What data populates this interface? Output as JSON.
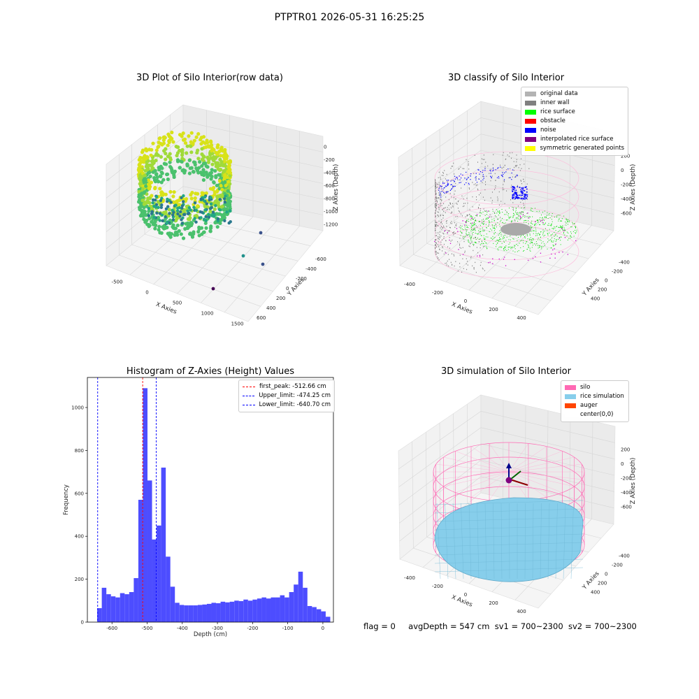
{
  "suptitle": "PTPTR01 2026-05-31 16:25:25",
  "panels": {
    "tl": {
      "title": "3D Plot of Silo Interior(row data)",
      "xlabel": "X Axies",
      "ylabel": "Y Axies",
      "zlabel": "Z Axies (Depth)",
      "xticks": [
        "-500",
        "0",
        "500",
        "1000",
        "1500"
      ],
      "yticks": [
        "600",
        "400",
        "200",
        "0",
        "-200",
        "-400",
        "-600"
      ],
      "zticks": [
        "0",
        "-200",
        "-400",
        "-600",
        "-800",
        "-1000",
        "-1200"
      ]
    },
    "tr": {
      "title": "3D classify of Silo Interior",
      "xlabel": "X Axies",
      "ylabel": "Y Axies",
      "zlabel": "Z Axies (Depth)",
      "xticks": [
        "-400",
        "-200",
        "0",
        "200",
        "400"
      ],
      "yticks": [
        "400",
        "200",
        "0",
        "-200",
        "-400"
      ],
      "zticks": [
        "200",
        "0",
        "-200",
        "-400",
        "-600"
      ],
      "legend": [
        {
          "label": "original data",
          "color": "#b3b3b3"
        },
        {
          "label": "inner wall",
          "color": "#808080"
        },
        {
          "label": "rice surface",
          "color": "#00ff00"
        },
        {
          "label": "obstacle",
          "color": "#ff0000"
        },
        {
          "label": "noise",
          "color": "#0000ff"
        },
        {
          "label": "interpolated rice surface",
          "color": "#800080"
        },
        {
          "label": "symmetric generated points",
          "color": "#ffff00"
        }
      ]
    },
    "bl": {
      "title": "Histogram of Z-Axies (Height) Values"
    },
    "br": {
      "title": "3D simulation of Silo Interior",
      "xlabel": "X Axies",
      "ylabel": "Y Axies",
      "zlabel": "Z Axies (Depth)",
      "xticks": [
        "-400",
        "-200",
        "0",
        "200",
        "400"
      ],
      "yticks": [
        "400",
        "200",
        "0",
        "-200",
        "-400"
      ],
      "zticks": [
        "200",
        "0",
        "-200",
        "-400",
        "-600"
      ],
      "legend": [
        {
          "label": "silo",
          "color": "#ff69b4"
        },
        {
          "label": "rice simulation",
          "color": "#87ceeb"
        },
        {
          "label": "auger",
          "color": "#ff4500"
        },
        {
          "label": "center(0,0)",
          "color": "#ffffff"
        }
      ]
    }
  },
  "chart_data": [
    {
      "type": "scatter",
      "title": "3D Plot of Silo Interior(row data)",
      "xlabel": "X Axies",
      "ylabel": "Y Axies",
      "zlabel": "Z Axies (Depth)",
      "xlim": [
        -500,
        1700
      ],
      "ylim": [
        -600,
        600
      ],
      "zlim": [
        -1300,
        0
      ],
      "colormap": "viridis"
    },
    {
      "type": "scatter",
      "title": "3D classify of Silo Interior",
      "xlim": [
        -500,
        500
      ],
      "ylim": [
        -500,
        500
      ],
      "zlim": [
        -700,
        200
      ]
    },
    {
      "type": "bar",
      "title": "Histogram of Z-Axies (Height) Values",
      "xlabel": "Depth (cm)",
      "ylabel": "Frequency",
      "xlim": [
        -670,
        30
      ],
      "ylim": [
        0,
        1140
      ],
      "xticks": [
        -600,
        -500,
        -400,
        -300,
        -200,
        -100,
        0
      ],
      "yticks": [
        0,
        200,
        400,
        600,
        800,
        1000
      ],
      "bar_color": "#4d4dff",
      "bin_start": -642,
      "bin_width": 13,
      "counts": [
        65,
        160,
        130,
        120,
        115,
        135,
        130,
        140,
        205,
        570,
        1090,
        660,
        385,
        450,
        720,
        305,
        165,
        90,
        80,
        78,
        78,
        78,
        80,
        82,
        85,
        90,
        88,
        95,
        92,
        95,
        100,
        98,
        105,
        100,
        105,
        110,
        115,
        110,
        115,
        115,
        125,
        115,
        140,
        175,
        235,
        160,
        75,
        70,
        60,
        50,
        25
      ],
      "lines": [
        {
          "label": "first_peak: -512.66 cm",
          "x": -512.66,
          "color": "#ff0000"
        },
        {
          "label": "Upper_limit: -474.25 cm",
          "x": -474.25,
          "color": "#0000ff"
        },
        {
          "label": "Lower_limit: -640.70 cm",
          "x": -640.7,
          "color": "#0000ff"
        }
      ]
    },
    {
      "type": "scatter",
      "title": "3D simulation of Silo Interior",
      "xlim": [
        -500,
        500
      ],
      "ylim": [
        -500,
        500
      ],
      "zlim": [
        -700,
        200
      ]
    }
  ],
  "footer": {
    "flag": "flag = 0",
    "avgDepth": "avgDepth = 547 cm",
    "sv1": "sv1 = 700~2300",
    "sv2": "sv2 = 700~2300"
  }
}
